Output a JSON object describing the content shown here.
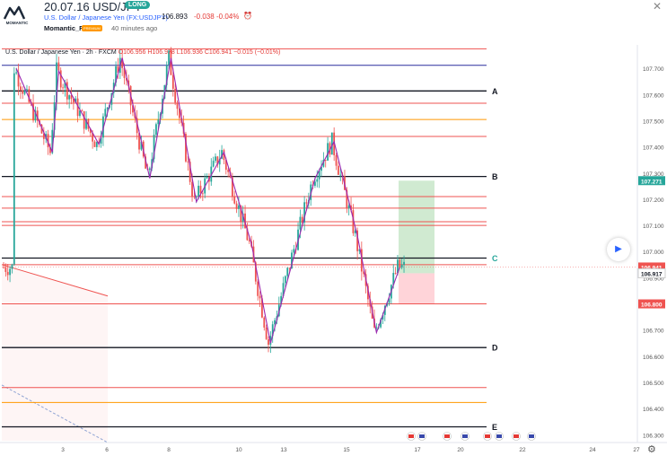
{
  "header": {
    "title": "20.07.16 USD/JPY",
    "badge": "LONG",
    "symbol": "U.S. Dollar / Japanese Yen (FX:USDJPY)",
    "price": "106.893",
    "change": "-0.038",
    "change_pct": "-0.04%",
    "author": "Momantic_FX",
    "time_ago": "40 minutes ago",
    "logo_text": "MOMANTIC"
  },
  "legend": {
    "name": "U.S. Dollar / Japanese Yen · 2h · FXCM",
    "open": "O106.956",
    "high": "H106.978",
    "low": "L106.936",
    "close": "C106.941",
    "change": "−0.015 (−0.01%)"
  },
  "colors": {
    "up": "#26a69a",
    "down": "#ef5350",
    "zigzag": "#9c27b0",
    "orange": "#ff9800",
    "red_line": "#ef5350",
    "black_line": "#131722",
    "blue_line": "#2a2e9e",
    "profit": "#c8e6c9",
    "stop": "#ffcdd2"
  },
  "chart_data": {
    "type": "candlestick",
    "symbol": "USD/JPY",
    "timeframe": "2h",
    "ylim": [
      106.28,
      107.78
    ],
    "y_ticks": [
      "107.700",
      "107.600",
      "107.500",
      "107.400",
      "107.300",
      "107.200",
      "107.100",
      "107.000",
      "106.900",
      "106.800",
      "106.700",
      "106.600",
      "106.500",
      "106.400",
      "106.300"
    ],
    "x_ticks": [
      "3",
      "6",
      "8",
      "10",
      "13",
      "15",
      "17",
      "20",
      "22",
      "24",
      "27"
    ],
    "price_tags": [
      {
        "label": "107.271",
        "value": 107.271,
        "color": "#26a69a"
      },
      {
        "label": "106.941",
        "value": 106.941,
        "color": "#ef5350"
      },
      {
        "label": "106.917",
        "value": 106.917,
        "color": "#ffffff"
      },
      {
        "label": "106.800",
        "value": 106.8,
        "color": "#ef5350"
      }
    ],
    "levels": [
      {
        "value": 107.775,
        "color": "#ef5350",
        "label": ""
      },
      {
        "value": 107.712,
        "color": "#2a2e9e",
        "label": ""
      },
      {
        "value": 107.614,
        "color": "#131722",
        "label": "A"
      },
      {
        "value": 107.567,
        "color": "#ef5350",
        "label": ""
      },
      {
        "value": 107.505,
        "color": "#ff9800",
        "label": ""
      },
      {
        "value": 107.44,
        "color": "#ef5350",
        "label": ""
      },
      {
        "value": 107.287,
        "color": "#131722",
        "label": "B"
      },
      {
        "value": 107.21,
        "color": "#ef5350",
        "label": ""
      },
      {
        "value": 107.166,
        "color": "#ef5350",
        "label": ""
      },
      {
        "value": 107.114,
        "color": "#ef5350",
        "label": ""
      },
      {
        "value": 107.1,
        "color": "#ef5350",
        "label": ""
      },
      {
        "value": 106.975,
        "color": "#131722",
        "label": "C"
      },
      {
        "value": 106.95,
        "color": "#ef5350",
        "label": ""
      },
      {
        "value": 106.8,
        "color": "#ef5350",
        "label": ""
      },
      {
        "value": 106.633,
        "color": "#131722",
        "label": "D"
      },
      {
        "value": 106.48,
        "color": "#ef5350",
        "label": ""
      },
      {
        "value": 106.423,
        "color": "#ff9800",
        "label": ""
      },
      {
        "value": 106.33,
        "color": "#131722",
        "label": "E"
      }
    ],
    "zigzag": [
      [
        6,
        107.7
      ],
      [
        23,
        107.38
      ],
      [
        26,
        107.69
      ],
      [
        45,
        107.41
      ],
      [
        56,
        107.74
      ],
      [
        69,
        107.28
      ],
      [
        79,
        107.74
      ],
      [
        91,
        107.19
      ],
      [
        104,
        107.38
      ],
      [
        117,
        107.03
      ],
      [
        126,
        106.65
      ],
      [
        147,
        107.28
      ],
      [
        156,
        107.42
      ],
      [
        167,
        107.06
      ],
      [
        176,
        106.69
      ],
      [
        187,
        106.94
      ]
    ],
    "position": {
      "entry": 106.917,
      "target": 107.271,
      "stop": 106.8
    }
  }
}
